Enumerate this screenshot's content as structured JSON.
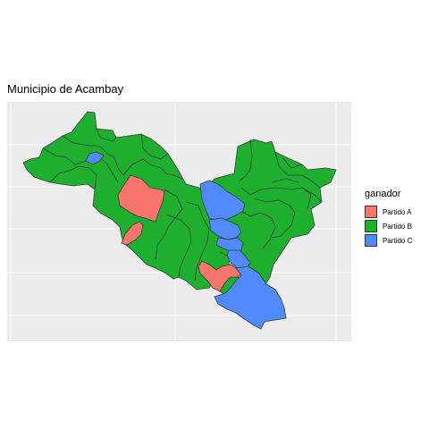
{
  "title": "Municipio de Acambay",
  "legend": {
    "title": "ganador",
    "items": [
      {
        "label": "Partido A",
        "color": "#F8766D"
      },
      {
        "label": "Partido B",
        "color": "#1FAF2F"
      },
      {
        "label": "Partido C",
        "color": "#4F8BFF"
      }
    ]
  },
  "map": {
    "background": "#EBEBEB",
    "grid_color": "#FFFFFF",
    "border_color": "#3A3A3A"
  }
}
